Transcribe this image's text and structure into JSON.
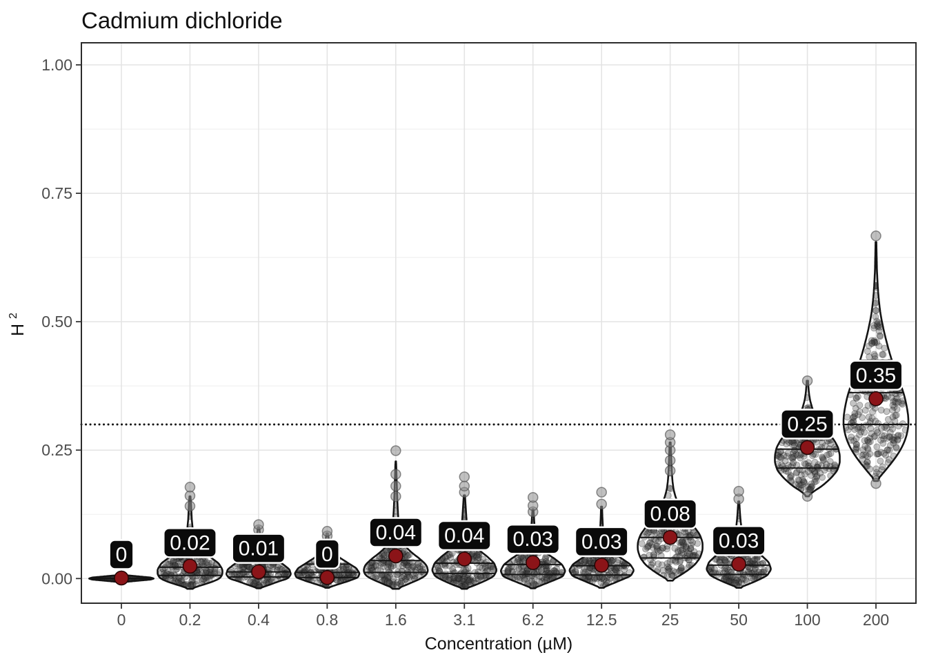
{
  "title": "Cadmium dichloride",
  "style": {
    "background": "#ffffff",
    "panel_border": "#2b2b2b",
    "grid_major": "#e3e3e3",
    "grid_minor": "#efefef",
    "tick_label_color": "#4d4d4d",
    "axis_title_color": "#111111",
    "violin_outline": "#141414",
    "point_color": "#5a5a5a",
    "outlier_color": "#8c8c8c",
    "mean_point_fill": "#8b1418",
    "mean_point_stroke": "#230505",
    "label_box_fill": "#0a0a0a",
    "label_box_border": "#ffffff",
    "label_text_color": "#ffffff",
    "reference_line_color": "#141414"
  },
  "chart_data": {
    "type": "violin",
    "title": "Cadmium dichloride",
    "xlabel": "Concentration (µM)",
    "ylabel_base": "H",
    "ylabel_sup": "2",
    "ylabel": "H2",
    "ylim": [
      -0.048,
      1.043
    ],
    "yticks": [
      0,
      0.25,
      0.5,
      0.75,
      1.0
    ],
    "ytick_labels": [
      "0.00",
      "0.25",
      "0.50",
      "0.75",
      "1.00"
    ],
    "y_minor": [
      0.125,
      0.375,
      0.625,
      0.875
    ],
    "grid": true,
    "legend": "none",
    "reference_line_y": 0.3,
    "categories": [
      "0",
      "0.2",
      "0.4",
      "0.8",
      "1.6",
      "3.1",
      "6.2",
      "12.5",
      "25",
      "50",
      "100",
      "200"
    ],
    "mean_labels": [
      "0",
      "0.02",
      "0.01",
      "0",
      "0.04",
      "0.04",
      "0.03",
      "0.03",
      "0.08",
      "0.03",
      "0.25",
      "0.35"
    ],
    "means": [
      0.001,
      0.024,
      0.013,
      0.002,
      0.044,
      0.038,
      0.031,
      0.026,
      0.08,
      0.028,
      0.255,
      0.35
    ],
    "violins": [
      {
        "category": "0",
        "mean_label": "0",
        "mean": 0.001,
        "quartiles": [
          0,
          0,
          0
        ],
        "outliers": [],
        "profile": [
          [
            -0.007,
            0.05
          ],
          [
            -0.004,
            0.55
          ],
          [
            -0.002,
            0.9
          ],
          [
            0,
            1
          ],
          [
            0.002,
            0.9
          ],
          [
            0.004,
            0.55
          ],
          [
            0.007,
            0.05
          ]
        ]
      },
      {
        "category": "0.2",
        "mean_label": "0.02",
        "mean": 0.024,
        "quartiles": [
          0.006,
          0.022,
          0.042
        ],
        "outliers": [
          0.141,
          0.161,
          0.178
        ],
        "profile": [
          [
            -0.02,
            0.02
          ],
          [
            -0.014,
            0.3
          ],
          [
            -0.008,
            0.62
          ],
          [
            0,
            0.92
          ],
          [
            0.008,
            1
          ],
          [
            0.018,
            1
          ],
          [
            0.03,
            0.88
          ],
          [
            0.042,
            0.62
          ],
          [
            0.054,
            0.38
          ],
          [
            0.066,
            0.22
          ],
          [
            0.08,
            0.13
          ],
          [
            0.095,
            0.085
          ],
          [
            0.115,
            0.055
          ],
          [
            0.135,
            0.04
          ],
          [
            0.15,
            0.028
          ],
          [
            0.16,
            0.015
          ]
        ]
      },
      {
        "category": "0.4",
        "mean_label": "0.01",
        "mean": 0.013,
        "quartiles": [
          0.003,
          0.013,
          0.03
        ],
        "outliers": [
          0.095,
          0.105
        ],
        "profile": [
          [
            -0.019,
            0.02
          ],
          [
            -0.013,
            0.3
          ],
          [
            -0.006,
            0.6
          ],
          [
            0,
            0.9
          ],
          [
            0.008,
            1
          ],
          [
            0.018,
            0.95
          ],
          [
            0.028,
            0.75
          ],
          [
            0.038,
            0.5
          ],
          [
            0.048,
            0.3
          ],
          [
            0.058,
            0.17
          ],
          [
            0.07,
            0.1
          ],
          [
            0.082,
            0.06
          ],
          [
            0.092,
            0.035
          ],
          [
            0.1,
            0.02
          ]
        ]
      },
      {
        "category": "0.8",
        "mean_label": "0",
        "mean": 0.002,
        "quartiles": [
          0.002,
          0.012,
          0.028
        ],
        "outliers": [
          0.083,
          0.092
        ],
        "profile": [
          [
            -0.018,
            0.02
          ],
          [
            -0.012,
            0.3
          ],
          [
            -0.005,
            0.65
          ],
          [
            0.002,
            0.95
          ],
          [
            0.01,
            1
          ],
          [
            0.02,
            0.9
          ],
          [
            0.03,
            0.65
          ],
          [
            0.04,
            0.4
          ],
          [
            0.05,
            0.22
          ],
          [
            0.06,
            0.12
          ],
          [
            0.07,
            0.07
          ],
          [
            0.08,
            0.04
          ],
          [
            0.088,
            0.02
          ]
        ]
      },
      {
        "category": "1.6",
        "mean_label": "0.04",
        "mean": 0.044,
        "quartiles": [
          0.012,
          0.035,
          0.062
        ],
        "outliers": [
          0.16,
          0.18,
          0.203,
          0.249
        ],
        "profile": [
          [
            -0.02,
            0.02
          ],
          [
            -0.013,
            0.3
          ],
          [
            -0.005,
            0.6
          ],
          [
            0.004,
            0.9
          ],
          [
            0.014,
            1
          ],
          [
            0.026,
            0.95
          ],
          [
            0.038,
            0.75
          ],
          [
            0.05,
            0.5
          ],
          [
            0.062,
            0.3
          ],
          [
            0.075,
            0.18
          ],
          [
            0.09,
            0.12
          ],
          [
            0.11,
            0.085
          ],
          [
            0.13,
            0.065
          ],
          [
            0.15,
            0.05
          ],
          [
            0.17,
            0.038
          ],
          [
            0.19,
            0.028
          ],
          [
            0.21,
            0.018
          ],
          [
            0.228,
            0.01
          ]
        ]
      },
      {
        "category": "3.1",
        "mean_label": "0.04",
        "mean": 0.038,
        "quartiles": [
          0.01,
          0.03,
          0.055
        ],
        "outliers": [
          0.168,
          0.18,
          0.198
        ],
        "profile": [
          [
            -0.02,
            0.02
          ],
          [
            -0.013,
            0.32
          ],
          [
            -0.005,
            0.62
          ],
          [
            0.004,
            0.9
          ],
          [
            0.016,
            1
          ],
          [
            0.03,
            0.92
          ],
          [
            0.042,
            0.72
          ],
          [
            0.054,
            0.48
          ],
          [
            0.066,
            0.28
          ],
          [
            0.078,
            0.17
          ],
          [
            0.09,
            0.11
          ],
          [
            0.105,
            0.08
          ],
          [
            0.12,
            0.06
          ],
          [
            0.135,
            0.045
          ],
          [
            0.15,
            0.03
          ],
          [
            0.162,
            0.018
          ]
        ]
      },
      {
        "category": "6.2",
        "mean_label": "0.03",
        "mean": 0.031,
        "quartiles": [
          0.008,
          0.027,
          0.05
        ],
        "outliers": [
          0.13,
          0.142,
          0.158
        ],
        "profile": [
          [
            -0.019,
            0.02
          ],
          [
            -0.012,
            0.3
          ],
          [
            -0.004,
            0.62
          ],
          [
            0.004,
            0.92
          ],
          [
            0.015,
            1
          ],
          [
            0.027,
            0.9
          ],
          [
            0.038,
            0.68
          ],
          [
            0.048,
            0.44
          ],
          [
            0.058,
            0.26
          ],
          [
            0.068,
            0.15
          ],
          [
            0.08,
            0.09
          ],
          [
            0.095,
            0.06
          ],
          [
            0.11,
            0.04
          ],
          [
            0.125,
            0.025
          ],
          [
            0.135,
            0.015
          ]
        ]
      },
      {
        "category": "12.5",
        "mean_label": "0.03",
        "mean": 0.026,
        "quartiles": [
          0.007,
          0.025,
          0.048
        ],
        "outliers": [
          0.145,
          0.168
        ],
        "profile": [
          [
            -0.018,
            0.02
          ],
          [
            -0.011,
            0.3
          ],
          [
            -0.003,
            0.6
          ],
          [
            0.005,
            0.9
          ],
          [
            0.016,
            1
          ],
          [
            0.028,
            0.88
          ],
          [
            0.04,
            0.6
          ],
          [
            0.05,
            0.35
          ],
          [
            0.06,
            0.18
          ],
          [
            0.07,
            0.1
          ],
          [
            0.085,
            0.06
          ],
          [
            0.1,
            0.04
          ],
          [
            0.12,
            0.025
          ],
          [
            0.14,
            0.015
          ]
        ]
      },
      {
        "category": "25",
        "mean_label": "0.08",
        "mean": 0.08,
        "quartiles": [
          0.04,
          0.08,
          0.115
        ],
        "outliers": [
          0.21,
          0.23,
          0.25,
          0.265,
          0.28
        ],
        "profile": [
          [
            -0.004,
            0.02
          ],
          [
            0.004,
            0.25
          ],
          [
            0.014,
            0.5
          ],
          [
            0.026,
            0.75
          ],
          [
            0.04,
            0.92
          ],
          [
            0.055,
            1
          ],
          [
            0.07,
            1
          ],
          [
            0.085,
            0.92
          ],
          [
            0.1,
            0.75
          ],
          [
            0.115,
            0.55
          ],
          [
            0.13,
            0.38
          ],
          [
            0.145,
            0.25
          ],
          [
            0.16,
            0.16
          ],
          [
            0.175,
            0.1
          ],
          [
            0.19,
            0.07
          ],
          [
            0.21,
            0.05
          ],
          [
            0.23,
            0.035
          ],
          [
            0.25,
            0.025
          ],
          [
            0.265,
            0.015
          ]
        ]
      },
      {
        "category": "50",
        "mean_label": "0.03",
        "mean": 0.028,
        "quartiles": [
          0.008,
          0.026,
          0.052
        ],
        "outliers": [
          0.155,
          0.17
        ],
        "profile": [
          [
            -0.018,
            0.02
          ],
          [
            -0.011,
            0.3
          ],
          [
            -0.003,
            0.6
          ],
          [
            0.006,
            0.88
          ],
          [
            0.018,
            1
          ],
          [
            0.032,
            0.92
          ],
          [
            0.045,
            0.7
          ],
          [
            0.058,
            0.45
          ],
          [
            0.07,
            0.26
          ],
          [
            0.082,
            0.15
          ],
          [
            0.095,
            0.09
          ],
          [
            0.11,
            0.06
          ],
          [
            0.125,
            0.04
          ],
          [
            0.14,
            0.025
          ],
          [
            0.15,
            0.015
          ]
        ]
      },
      {
        "category": "100",
        "mean_label": "0.25",
        "mean": 0.255,
        "quartiles": [
          0.215,
          0.252,
          0.29
        ],
        "outliers": [
          0.16,
          0.385
        ],
        "profile": [
          [
            0.16,
            0.015
          ],
          [
            0.17,
            0.2
          ],
          [
            0.18,
            0.45
          ],
          [
            0.195,
            0.72
          ],
          [
            0.21,
            0.92
          ],
          [
            0.225,
            1
          ],
          [
            0.24,
            1
          ],
          [
            0.255,
            0.95
          ],
          [
            0.27,
            0.82
          ],
          [
            0.285,
            0.62
          ],
          [
            0.3,
            0.42
          ],
          [
            0.315,
            0.27
          ],
          [
            0.33,
            0.16
          ],
          [
            0.345,
            0.09
          ],
          [
            0.36,
            0.05
          ],
          [
            0.375,
            0.03
          ],
          [
            0.385,
            0.02
          ]
        ]
      },
      {
        "category": "200",
        "mean_label": "0.35",
        "mean": 0.35,
        "quartiles": [
          0.3,
          0.362,
          0.425
        ],
        "outliers": [
          0.185,
          0.667
        ],
        "profile": [
          [
            0.19,
            0.015
          ],
          [
            0.2,
            0.15
          ],
          [
            0.215,
            0.35
          ],
          [
            0.235,
            0.6
          ],
          [
            0.255,
            0.8
          ],
          [
            0.275,
            0.93
          ],
          [
            0.295,
            1
          ],
          [
            0.315,
            1
          ],
          [
            0.335,
            0.95
          ],
          [
            0.355,
            0.88
          ],
          [
            0.375,
            0.78
          ],
          [
            0.395,
            0.66
          ],
          [
            0.415,
            0.54
          ],
          [
            0.435,
            0.44
          ],
          [
            0.455,
            0.35
          ],
          [
            0.475,
            0.27
          ],
          [
            0.495,
            0.2
          ],
          [
            0.515,
            0.14
          ],
          [
            0.535,
            0.1
          ],
          [
            0.555,
            0.07
          ],
          [
            0.575,
            0.05
          ],
          [
            0.6,
            0.03
          ],
          [
            0.63,
            0.02
          ],
          [
            0.655,
            0.012
          ]
        ]
      }
    ]
  }
}
